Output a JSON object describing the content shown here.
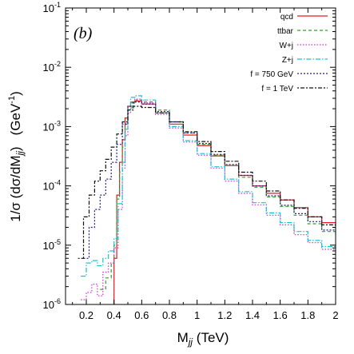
{
  "chart_data": {
    "type": "line",
    "panel_label": "(b)",
    "xlabel": {
      "base": "M",
      "sub": "jj",
      "unit": " (TeV)"
    },
    "ylabel": {
      "pre": "1/σ (dσ/dM",
      "sub": "jj",
      "post": ")",
      "unit": "(GeV",
      "unit_sup": "-1",
      "unit_close": ")"
    },
    "xlim": [
      0.05,
      2.0
    ],
    "ylim": [
      1e-06,
      0.1
    ],
    "yscale": "log",
    "grid": false,
    "legend_position": "top-right",
    "xticks": [
      0.2,
      0.4,
      0.6,
      0.8,
      1.0,
      1.2,
      1.4,
      1.6,
      1.8,
      2.0
    ],
    "xtick_labels": [
      "0.2",
      "0.4",
      "0.6",
      "0.8",
      "1",
      "1.2",
      "1.4",
      "1.6",
      "1.8",
      "2"
    ],
    "ytick_exponents": [
      -6,
      -5,
      -4,
      -3,
      -2,
      -1
    ],
    "ytick_base": "10",
    "series": [
      {
        "name": "qcd",
        "color": "#e41a1c",
        "dash": "",
        "x": [
          0.38,
          0.4,
          0.42,
          0.44,
          0.46,
          0.48,
          0.5,
          0.52,
          0.55,
          0.6,
          0.7,
          0.8,
          0.9,
          1.0,
          1.1,
          1.2,
          1.3,
          1.4,
          1.5,
          1.6,
          1.7,
          1.8,
          1.9,
          2.0
        ],
        "y": [
          7e-07,
          6e-06,
          7e-05,
          0.00025,
          0.0006,
          0.0014,
          0.0022,
          0.0026,
          0.0027,
          0.0024,
          0.0017,
          0.0011,
          0.00072,
          0.00048,
          0.00032,
          0.00022,
          0.00015,
          0.0001,
          7.5e-05,
          5.8e-05,
          4.3e-05,
          3e-05,
          2.4e-05,
          2e-05
        ]
      },
      {
        "name": "ttbar",
        "color": "#2ca02c",
        "dash": "4,3",
        "x": [
          0.3,
          0.34,
          0.38,
          0.4,
          0.42,
          0.44,
          0.46,
          0.48,
          0.5,
          0.53,
          0.56,
          0.6,
          0.7,
          0.8,
          0.9,
          1.0,
          1.1,
          1.2,
          1.3,
          1.4,
          1.5,
          1.6,
          1.7,
          1.8,
          1.9,
          2.0
        ],
        "y": [
          1.8e-06,
          2.8e-06,
          5e-06,
          1e-05,
          6e-05,
          0.00017,
          0.00045,
          0.0011,
          0.0019,
          0.0025,
          0.0028,
          0.0026,
          0.0019,
          0.0012,
          0.00078,
          0.0005,
          0.00033,
          0.00022,
          0.00014,
          9.5e-05,
          6.5e-05,
          4.5e-05,
          3.2e-05,
          2.3e-05,
          1.7e-05,
          1.5e-05
        ]
      },
      {
        "name": "W+j",
        "color": "#d62ad6",
        "dash": "1.5,2",
        "x": [
          0.16,
          0.2,
          0.24,
          0.28,
          0.32,
          0.36,
          0.4,
          0.43,
          0.46,
          0.48,
          0.5,
          0.52,
          0.55,
          0.6,
          0.7,
          0.8,
          0.9,
          1.0,
          1.1,
          1.2,
          1.3,
          1.4,
          1.5,
          1.6,
          1.7,
          1.8,
          1.9,
          2.0
        ],
        "y": [
          1.2e-06,
          1.6e-06,
          2.2e-06,
          1.4e-06,
          3.5e-06,
          5e-06,
          9e-06,
          4e-05,
          0.0002,
          0.0007,
          0.0017,
          0.0026,
          0.0029,
          0.0025,
          0.0016,
          0.00095,
          0.00055,
          0.00033,
          0.0002,
          0.00012,
          7.5e-05,
          4.8e-05,
          3.2e-05,
          2.2e-05,
          1.5e-05,
          1.1e-05,
          8.5e-06,
          7e-06
        ]
      },
      {
        "name": "Z+j",
        "color": "#17c2d4",
        "dash": "6,2,1.5,2",
        "x": [
          0.16,
          0.2,
          0.24,
          0.28,
          0.32,
          0.36,
          0.4,
          0.43,
          0.46,
          0.48,
          0.5,
          0.52,
          0.55,
          0.6,
          0.7,
          0.8,
          0.9,
          1.0,
          1.1,
          1.2,
          1.3,
          1.4,
          1.5,
          1.6,
          1.7,
          1.8,
          1.9,
          2.0
        ],
        "y": [
          3e-06,
          5e-06,
          5.5e-06,
          4.5e-06,
          6e-06,
          8e-06,
          1.3e-05,
          5e-05,
          0.00025,
          0.0009,
          0.002,
          0.0031,
          0.0033,
          0.0028,
          0.0017,
          0.001,
          0.00058,
          0.00035,
          0.00021,
          0.00013,
          8e-05,
          5.2e-05,
          3.5e-05,
          2.4e-05,
          1.7e-05,
          1.2e-05,
          9.5e-06,
          8e-06
        ]
      },
      {
        "name": "f = 750 GeV",
        "color": "#1f1f8f",
        "dash": "2,2",
        "x": [
          0.18,
          0.22,
          0.26,
          0.3,
          0.34,
          0.38,
          0.42,
          0.46,
          0.5,
          0.54,
          0.6,
          0.7,
          0.8,
          0.9,
          1.0,
          1.1,
          1.2,
          1.3,
          1.4,
          1.5,
          1.6,
          1.7,
          1.8,
          1.9,
          2.0
        ],
        "y": [
          6e-06,
          2e-05,
          4e-05,
          7e-05,
          0.00013,
          0.00025,
          0.0005,
          0.0011,
          0.0022,
          0.0026,
          0.0024,
          0.0018,
          0.0012,
          0.00078,
          0.00052,
          0.00034,
          0.00023,
          0.00015,
          0.0001,
          6.8e-05,
          4.7e-05,
          3.4e-05,
          2.5e-05,
          1.8e-05,
          1.5e-05
        ]
      },
      {
        "name": "f = 1 TeV",
        "color": "#111111",
        "dash": "2,2,5,2",
        "x": [
          0.14,
          0.18,
          0.22,
          0.26,
          0.3,
          0.34,
          0.38,
          0.42,
          0.46,
          0.5,
          0.54,
          0.6,
          0.7,
          0.8,
          0.9,
          1.0,
          1.1,
          1.2,
          1.3,
          1.4,
          1.5,
          1.6,
          1.7,
          1.8,
          1.9,
          2.0
        ],
        "y": [
          6e-06,
          3e-05,
          7e-05,
          0.00012,
          0.00018,
          0.00028,
          0.00045,
          0.00075,
          0.0012,
          0.0019,
          0.0022,
          0.0021,
          0.0017,
          0.0012,
          0.00082,
          0.00056,
          0.00038,
          0.00026,
          0.00017,
          0.00012,
          8.2e-05,
          5.8e-05,
          4.2e-05,
          3e-05,
          2.2e-05,
          1.8e-05
        ]
      }
    ]
  }
}
